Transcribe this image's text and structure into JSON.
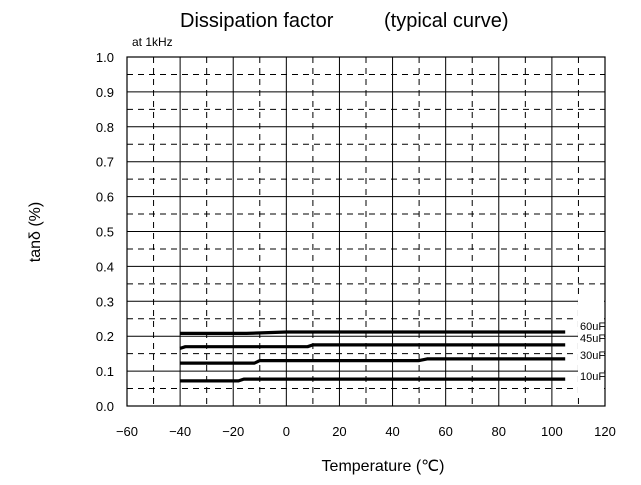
{
  "chart_data": {
    "type": "line",
    "title": "Dissipation factor",
    "title_note": "(typical curve)",
    "subtitle": "at 1kHz",
    "xlabel": "Temperature (℃)",
    "ylabel": "tanδ (%)",
    "xlim": [
      -60,
      120
    ],
    "ylim": [
      0.0,
      1.0
    ],
    "x_ticks": [
      -60,
      -40,
      -20,
      0,
      20,
      40,
      60,
      80,
      100,
      120
    ],
    "x_tick_labels": [
      "−60",
      "−40",
      "−20",
      "0",
      "20",
      "40",
      "60",
      "80",
      "100",
      "120"
    ],
    "y_ticks": [
      0.0,
      0.1,
      0.2,
      0.3,
      0.4,
      0.5,
      0.6,
      0.7,
      0.8,
      0.9,
      1.0
    ],
    "y_tick_labels": [
      "0.0",
      "0.1",
      "0.2",
      "0.3",
      "0.4",
      "0.5",
      "0.6",
      "0.7",
      "0.8",
      "0.9",
      "1.0"
    ],
    "grid": true,
    "series": [
      {
        "name": "60uF",
        "x": [
          -40,
          -15,
          0,
          10,
          105
        ],
        "y": [
          0.208,
          0.208,
          0.212,
          0.212,
          0.212
        ]
      },
      {
        "name": "45uF",
        "x": [
          -40,
          -38,
          8,
          10,
          105
        ],
        "y": [
          0.165,
          0.17,
          0.17,
          0.175,
          0.175
        ]
      },
      {
        "name": "30uF",
        "x": [
          -40,
          -12,
          -10,
          50,
          53,
          105
        ],
        "y": [
          0.123,
          0.123,
          0.13,
          0.13,
          0.135,
          0.135
        ]
      },
      {
        "name": "10uF",
        "x": [
          -40,
          -18,
          -16,
          105
        ],
        "y": [
          0.072,
          0.072,
          0.077,
          0.077
        ]
      }
    ],
    "line_color": "#000000"
  }
}
